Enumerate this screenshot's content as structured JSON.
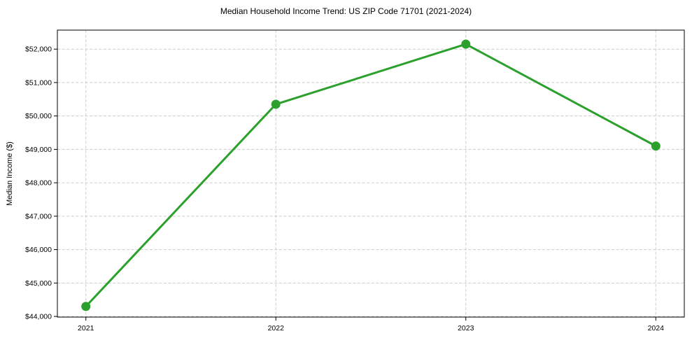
{
  "chart_data": {
    "type": "line",
    "title": "Median Household Income Trend: US ZIP Code 71701 (2021-2024)",
    "xlabel": "",
    "ylabel": "Median Income ($)",
    "x": [
      2021,
      2022,
      2023,
      2024
    ],
    "series": [
      {
        "name": "Median Household Income",
        "values": [
          44300,
          50350,
          52150,
          49100
        ]
      }
    ],
    "xticks": [
      2021,
      2022,
      2023,
      2024
    ],
    "xtick_labels": [
      "2021",
      "2022",
      "2023",
      "2024"
    ],
    "yticks": [
      44000,
      45000,
      46000,
      47000,
      48000,
      49000,
      50000,
      51000,
      52000
    ],
    "ytick_labels": [
      "$44,000",
      "$45,000",
      "$46,000",
      "$47,000",
      "$48,000",
      "$49,000",
      "$50,000",
      "$51,000",
      "$52,000"
    ],
    "xlim": [
      2020.85,
      2024.15
    ],
    "ylim": [
      43980,
      52570
    ],
    "grid": true,
    "legend": "none",
    "line_color": "#2ca02c",
    "marker": "circle",
    "background_color": "#ffffff",
    "grid_color": "#cccccc",
    "spine_color": "#000000"
  }
}
